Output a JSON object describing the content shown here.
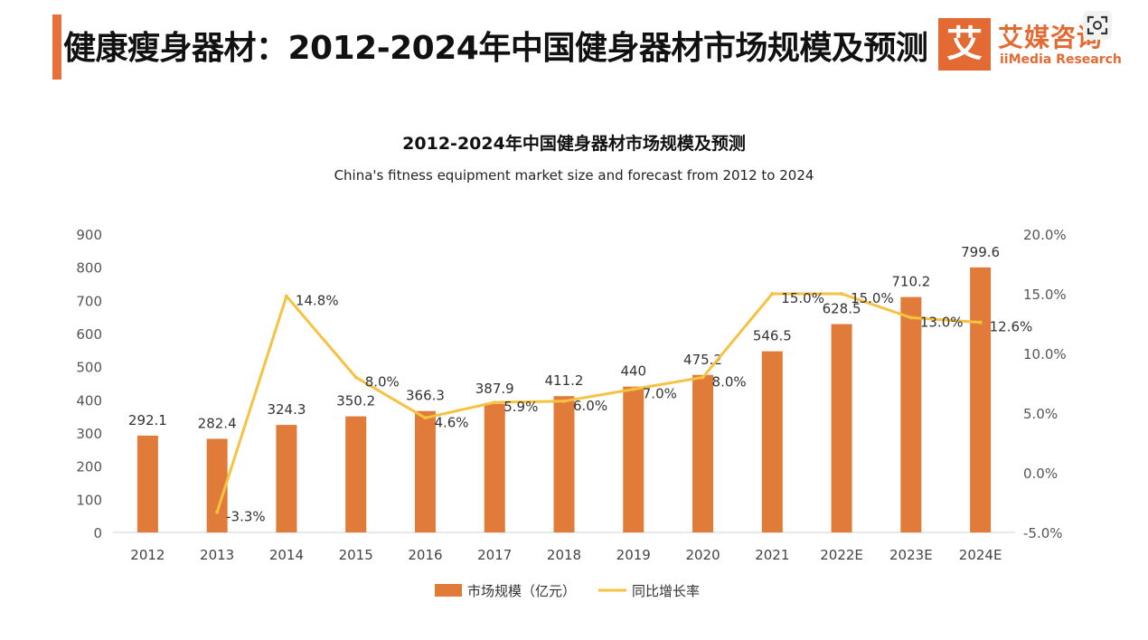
{
  "header": {
    "title": "健康瘦身器材：2012-2024年中国健身器材市场规模及预测",
    "accent_color": "#e8703a"
  },
  "logo": {
    "mark": "艾",
    "name_cn": "艾媒咨询",
    "name_en": "iiMedia Research",
    "color": "#e46a33"
  },
  "corner_icon": "scan-icon",
  "chart_data": {
    "type": "bar",
    "title": "2012-2024年中国健身器材市场规模及预测",
    "subtitle": "China's fitness equipment market size and forecast from 2012 to 2024",
    "categories": [
      "2012",
      "2013",
      "2014",
      "2015",
      "2016",
      "2017",
      "2018",
      "2019",
      "2020",
      "2021",
      "2022E",
      "2023E",
      "2024E"
    ],
    "series": [
      {
        "name": "市场规模（亿元）",
        "type": "bar",
        "axis": "left",
        "color": "#e07b39",
        "values": [
          292.1,
          282.4,
          324.3,
          350.2,
          366.3,
          387.9,
          411.2,
          440,
          475.2,
          546.5,
          628.5,
          710.2,
          799.6
        ],
        "labels": [
          "292.1",
          "282.4",
          "324.3",
          "350.2",
          "366.3",
          "387.9",
          "411.2",
          "440",
          "475.2",
          "546.5",
          "628.5",
          "710.2",
          "799.6"
        ]
      },
      {
        "name": "同比增长率",
        "type": "line",
        "axis": "right",
        "color": "#f5c242",
        "values": [
          null,
          -3.3,
          14.8,
          8.0,
          4.6,
          5.9,
          6.0,
          7.0,
          8.0,
          15.0,
          15.0,
          13.0,
          12.6
        ],
        "labels": [
          "",
          "-3.3%",
          "14.8%",
          "8.0%",
          "4.6%",
          "5.9%",
          "6.0%",
          "7.0%",
          "8.0%",
          "15.0%",
          "15.0%",
          "13.0%",
          "12.6%"
        ]
      }
    ],
    "y_left": {
      "range": [
        0,
        900
      ],
      "ticks": [
        0,
        100,
        200,
        300,
        400,
        500,
        600,
        700,
        800,
        900
      ],
      "tick_labels": [
        "0",
        "100",
        "200",
        "300",
        "400",
        "500",
        "600",
        "700",
        "800",
        "900"
      ]
    },
    "y_right": {
      "range": [
        -5,
        20
      ],
      "ticks": [
        -5,
        0,
        5,
        10,
        15,
        20
      ],
      "tick_labels": [
        "-5.0%",
        "0.0%",
        "5.0%",
        "10.0%",
        "15.0%",
        "20.0%"
      ]
    },
    "grid": false,
    "legend_position": "bottom"
  }
}
